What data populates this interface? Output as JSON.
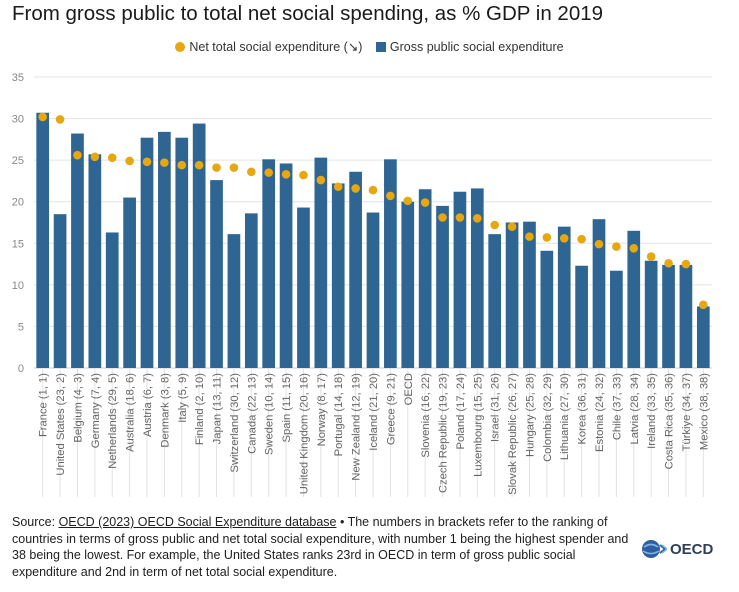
{
  "title": "From gross public to total net social spending, as % GDP in 2019",
  "legend": {
    "net_label": "Net total social expenditure (↘)",
    "gross_label": "Gross public social expenditure"
  },
  "colors": {
    "gross": "#2e6592",
    "net": "#e6a710",
    "grid": "#e4e4e4",
    "axis": "#cccccc",
    "tick": "#888888"
  },
  "chart_data": {
    "type": "bar",
    "title": "From gross public to total net social spending, as % GDP in 2019",
    "xlabel": "",
    "ylabel": "",
    "ylim": [
      0,
      35
    ],
    "yticks": [
      0,
      5,
      10,
      15,
      20,
      25,
      30,
      35
    ],
    "grid": true,
    "legend_position": "top-center",
    "categories": [
      "France (1, 1)",
      "United States (23, 2)",
      "Belgium (4, 3)",
      "Germany (7, 4)",
      "Netherlands (29, 5)",
      "Australia (18, 6)",
      "Austria (6, 7)",
      "Denmark (3, 8)",
      "Italy (5, 9)",
      "Finland (2, 10)",
      "Japan (13, 11)",
      "Switzerland (30, 12)",
      "Canada (22, 13)",
      "Sweden (10, 14)",
      "Spain (11, 15)",
      "United Kingdom (20, 16)",
      "Norway (8, 17)",
      "Portugal (14, 18)",
      "New Zealand (12, 19)",
      "Iceland (21, 20)",
      "Greece (9, 21)",
      "OECD",
      "Slovenia (16, 22)",
      "Czech Republic (19, 23)",
      "Poland (17, 24)",
      "Luxembourg (15, 25)",
      "Israel (31, 26)",
      "Slovak Republic (26, 27)",
      "Hungary (25, 28)",
      "Colombia (32, 29)",
      "Lithuania (27, 30)",
      "Korea (36, 31)",
      "Estonia (24, 32)",
      "Chile (37, 33)",
      "Latvia (28, 34)",
      "Ireland (33, 35)",
      "Costa Rica (35, 36)",
      "Türkiye (34, 37)",
      "Mexico (38, 38)"
    ],
    "series": [
      {
        "name": "Gross public social expenditure",
        "kind": "bar",
        "values": [
          30.7,
          18.5,
          28.2,
          25.7,
          16.3,
          20.5,
          27.7,
          28.4,
          27.7,
          29.4,
          22.6,
          16.1,
          18.6,
          25.1,
          24.6,
          19.3,
          25.3,
          22.2,
          23.6,
          18.7,
          25.1,
          20.0,
          21.5,
          19.5,
          21.2,
          21.6,
          16.1,
          17.5,
          17.6,
          14.1,
          17.0,
          12.3,
          17.9,
          11.7,
          16.5,
          12.9,
          12.4,
          12.4,
          7.4
        ]
      },
      {
        "name": "Net total social expenditure",
        "kind": "dot",
        "values": [
          30.2,
          29.9,
          25.6,
          25.4,
          25.3,
          24.9,
          24.8,
          24.7,
          24.4,
          24.4,
          24.1,
          24.1,
          23.6,
          23.5,
          23.3,
          23.2,
          22.6,
          21.8,
          21.6,
          21.4,
          20.7,
          20.1,
          19.9,
          18.1,
          18.1,
          18.0,
          17.2,
          17.0,
          15.8,
          15.7,
          15.6,
          15.5,
          14.9,
          14.6,
          14.4,
          13.4,
          12.6,
          12.5,
          7.6
        ]
      }
    ]
  },
  "footer": {
    "source_prefix": "Source: ",
    "source_link": "OECD (2023) OECD Social Expenditure database",
    "note": " • The numbers in brackets refer to the ranking of countries in terms of gross public and net total social expenditure, with number 1 being the highest spender and 38 being the lowest. For example, the United States ranks 23rd in OECD in term of gross public social expenditure and 2nd in term of net total social expenditure."
  },
  "logo": {
    "text": "OECD"
  }
}
